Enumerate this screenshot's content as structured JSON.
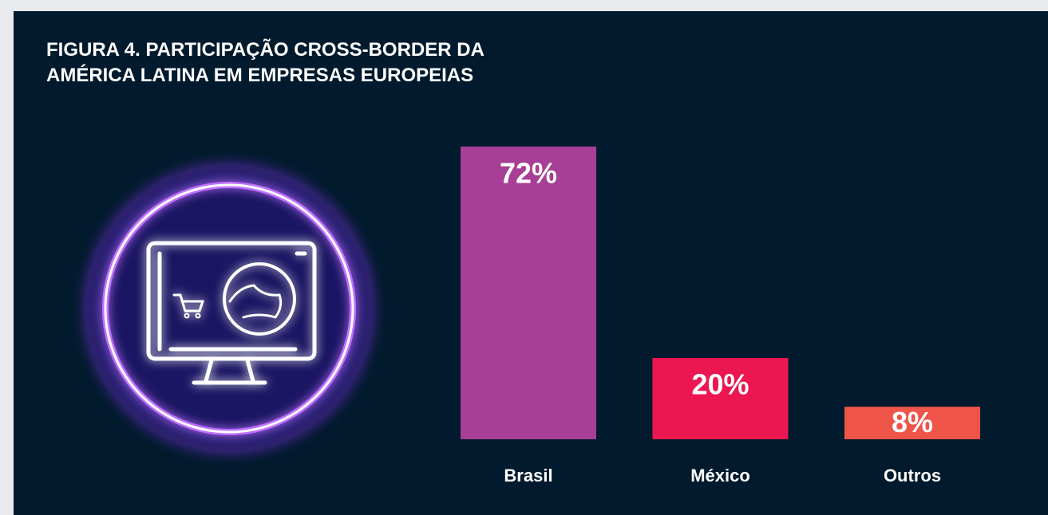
{
  "chart_data": {
    "type": "bar",
    "title": "FIGURA 4. PARTICIPAÇÃO CROSS-BORDER DA AMÉRICA LATINA EM EMPRESAS EUROPEIAS",
    "categories": [
      "Brasil",
      "México",
      "Outros"
    ],
    "values": [
      72,
      20,
      8
    ],
    "value_labels": [
      "72%",
      "20%",
      "8%"
    ],
    "colors": [
      "#a63f95",
      "#ec1651",
      "#ef5449"
    ]
  }
}
